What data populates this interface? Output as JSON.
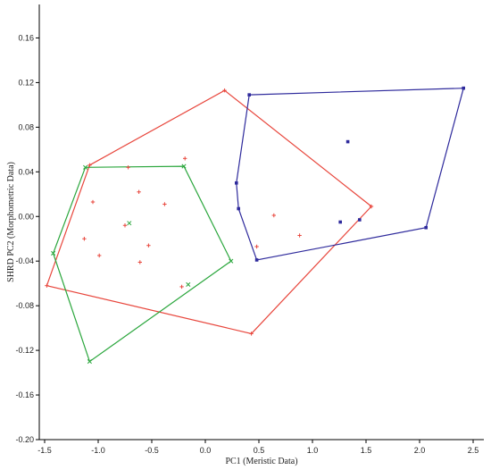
{
  "chart_data": {
    "type": "scatter",
    "title": "",
    "xlabel": "PC1 (Meristic Data)",
    "ylabel": "SHRD PC2 (Morphometric Data)",
    "xlim": [
      -1.55,
      2.6
    ],
    "ylim": [
      -0.2,
      0.19
    ],
    "xticks": [
      -1.5,
      -1.0,
      -0.5,
      0.0,
      0.5,
      1.0,
      1.5,
      2.0,
      2.5
    ],
    "xtick_labels": [
      "-1.5",
      "-1.0",
      "-0.5",
      "0.0",
      "0.5",
      "1.0",
      "1.5",
      "2.0",
      "2.5"
    ],
    "yticks": [
      -0.2,
      -0.16,
      -0.12,
      -0.08,
      -0.04,
      0.0,
      0.04,
      0.08,
      0.12,
      0.16
    ],
    "ytick_labels": [
      "-0.20",
      "-0.16",
      "-0.12",
      "-0.08",
      "-0.04",
      "0.00",
      "0.04",
      "0.08",
      "0.12",
      "0.16"
    ],
    "grid": false,
    "series": [
      {
        "color": "#e8463c",
        "marker": "plus",
        "hull": [
          [
            -1.48,
            -0.062
          ],
          [
            -1.08,
            0.046
          ],
          [
            0.18,
            0.113
          ],
          [
            1.55,
            0.009
          ],
          [
            0.43,
            -0.105
          ]
        ],
        "points": [
          [
            -1.48,
            -0.062
          ],
          [
            -1.08,
            0.046
          ],
          [
            0.18,
            0.113
          ],
          [
            1.55,
            0.009
          ],
          [
            0.43,
            -0.105
          ],
          [
            -1.05,
            0.013
          ],
          [
            -0.72,
            0.044
          ],
          [
            -0.62,
            0.022
          ],
          [
            -0.38,
            0.011
          ],
          [
            -0.19,
            0.052
          ],
          [
            -1.13,
            -0.02
          ],
          [
            -0.75,
            -0.008
          ],
          [
            -0.99,
            -0.035
          ],
          [
            -0.53,
            -0.026
          ],
          [
            -0.61,
            -0.041
          ],
          [
            -0.22,
            -0.063
          ],
          [
            0.64,
            0.001
          ],
          [
            0.48,
            -0.027
          ],
          [
            0.88,
            -0.017
          ]
        ]
      },
      {
        "color": "#2aa63c",
        "marker": "x",
        "hull": [
          [
            -1.42,
            -0.033
          ],
          [
            -1.12,
            0.044
          ],
          [
            -0.2,
            0.045
          ],
          [
            0.24,
            -0.04
          ],
          [
            -1.08,
            -0.13
          ]
        ],
        "points": [
          [
            -1.42,
            -0.033
          ],
          [
            -1.12,
            0.044
          ],
          [
            -0.2,
            0.045
          ],
          [
            0.24,
            -0.04
          ],
          [
            -1.08,
            -0.13
          ],
          [
            -0.71,
            -0.006
          ],
          [
            -0.16,
            -0.061
          ]
        ]
      },
      {
        "color": "#2e2a9c",
        "marker": "square",
        "hull": [
          [
            0.41,
            0.109
          ],
          [
            2.41,
            0.115
          ],
          [
            2.06,
            -0.01
          ],
          [
            0.48,
            -0.039
          ],
          [
            0.31,
            0.007
          ],
          [
            0.29,
            0.03
          ]
        ],
        "points": [
          [
            0.41,
            0.109
          ],
          [
            2.41,
            0.115
          ],
          [
            2.06,
            -0.01
          ],
          [
            0.48,
            -0.039
          ],
          [
            0.31,
            0.007
          ],
          [
            0.29,
            0.03
          ],
          [
            1.33,
            0.067
          ],
          [
            1.26,
            -0.005
          ],
          [
            1.44,
            -0.003
          ]
        ]
      }
    ]
  }
}
